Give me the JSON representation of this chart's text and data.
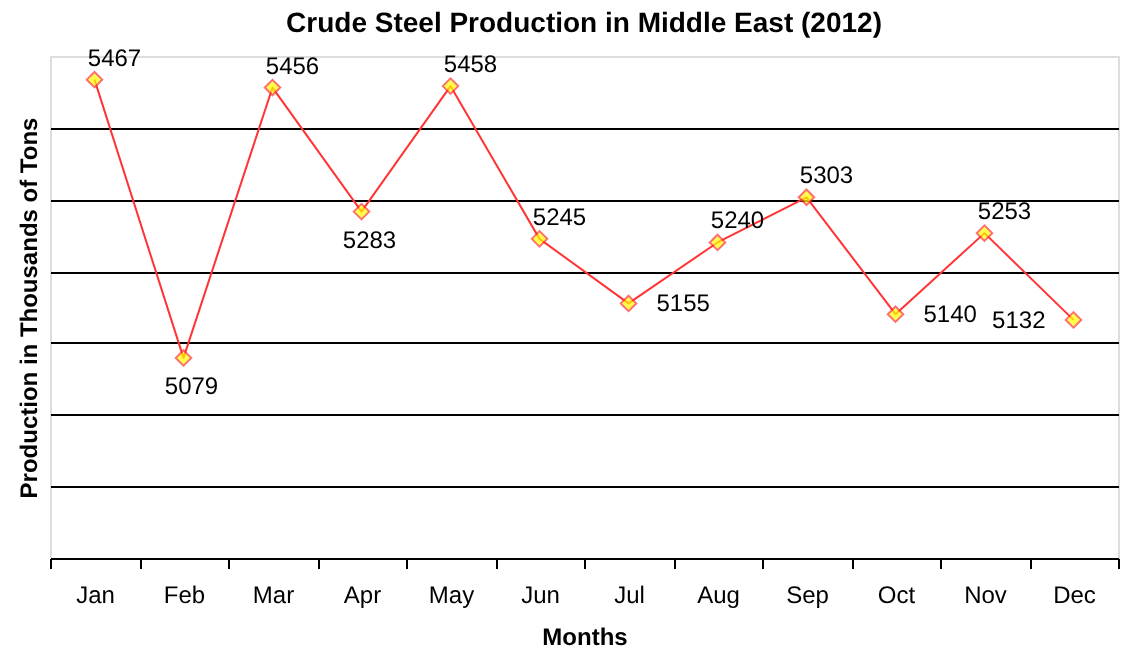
{
  "chart_data": {
    "type": "line",
    "title": "Crude Steel Production in Middle East (2012)",
    "xlabel": "Months",
    "ylabel": "Production in Thousands of Tons",
    "categories": [
      "Jan",
      "Feb",
      "Mar",
      "Apr",
      "May",
      "Jun",
      "Jul",
      "Aug",
      "Sep",
      "Oct",
      "Nov",
      "Dec"
    ],
    "series": [
      {
        "color": "#ff3333",
        "values": [
          5467,
          5079,
          5456,
          5283,
          5458,
          5245,
          5155,
          5240,
          5303,
          5140,
          5253,
          5132
        ]
      }
    ],
    "ylim": [
      4800,
      5500
    ],
    "yticks": [
      {
        "value": 4900,
        "label": null
      },
      {
        "value": 5000,
        "label": null
      },
      {
        "value": 5100,
        "label": null
      },
      {
        "value": 5200,
        "label": null
      },
      {
        "value": 5300,
        "label": null
      },
      {
        "value": 5400,
        "label": null
      }
    ],
    "grid": "y",
    "tick_labels": "x",
    "data_labels": true,
    "marker": "diamond",
    "line_style": "solid"
  }
}
